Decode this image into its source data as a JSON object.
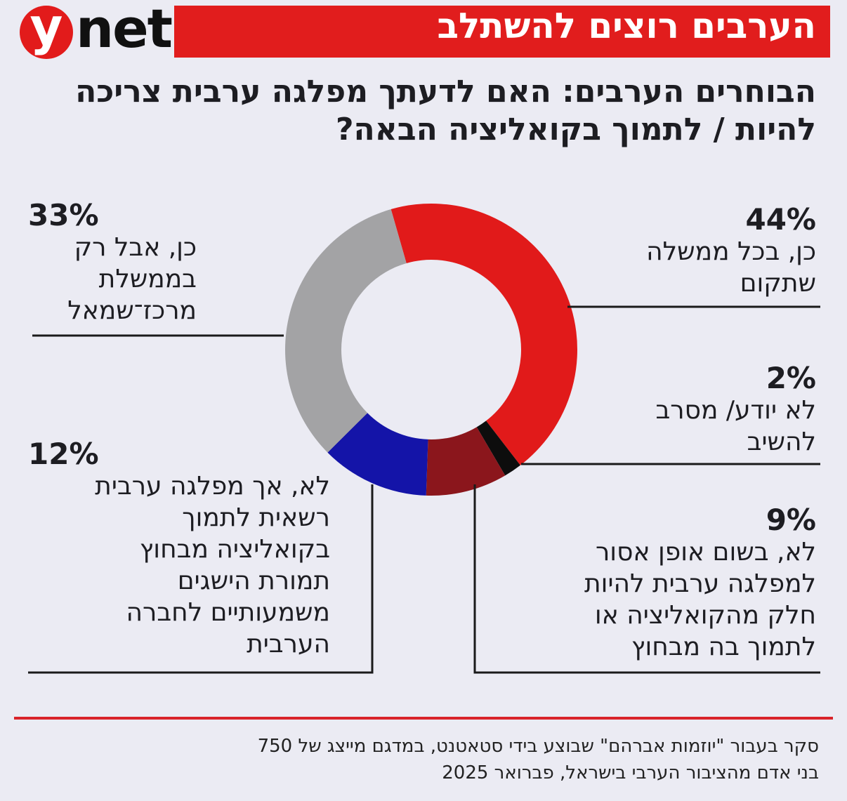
{
  "header": {
    "logo_y": "y",
    "logo_net": "net",
    "banner_title": "הערבים רוצים להשתלב"
  },
  "question": "הבוחרים הערבים: האם לדעתך מפלגה ערבית צריכה להיות / לתמוך בקואליציה הבאה?",
  "chart_data": {
    "type": "donut",
    "title": "הבוחרים הערבים: האם לדעתך מפלגה ערבית צריכה להיות / לתמוך בקואליציה הבאה?",
    "slices": [
      {
        "key": "yes_any",
        "value": 44,
        "percent_label": "44%",
        "label": "כן, בכל ממשלה\nשתקום",
        "color": "#e11a1a"
      },
      {
        "key": "dont_know",
        "value": 2,
        "percent_label": "2%",
        "label": "לא יודע/ מסרב\nלהשיב",
        "color": "#0d0d0d"
      },
      {
        "key": "no_never",
        "value": 9,
        "percent_label": "9%",
        "label": "לא, בשום אופן אסור\nלמפלגה ערבית להיות\nחלק מהקואליציה או\nלתמוך בה מבחוץ",
        "color": "#8b161c"
      },
      {
        "key": "no_unless",
        "value": 12,
        "percent_label": "12%",
        "label": "לא, אך מפלגה ערבית\nרשאית לתמוך\nבקואליציה מבחוץ\nתמורת הישגים\nמשמעותיים לחברה\nהערבית",
        "color": "#1414a8"
      },
      {
        "key": "yes_center_left",
        "value": 33,
        "percent_label": "33%",
        "label": "כן, אבל רק\nבממשלת\nמרכז־שמאל",
        "color": "#a3a3a5"
      }
    ]
  },
  "footer": {
    "source": "סקר בעבור \"יוזמות אברהם\" שבוצע בידי סטאטנט, במדגם מייצג של 750\nבני אדם מהציבור הערבי בישראל, פברואר 2025",
    "divider_color": "#d9232a"
  }
}
